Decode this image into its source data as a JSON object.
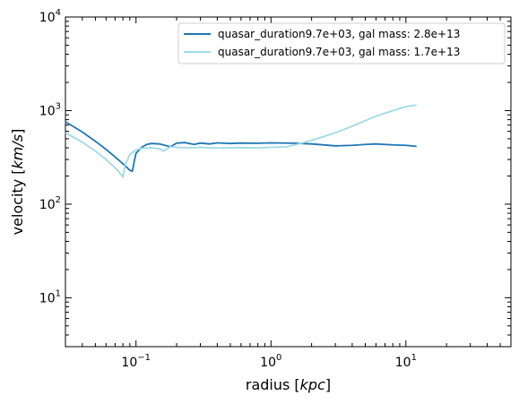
{
  "chart_data": {
    "type": "line",
    "xlabel": "radius [kpc]",
    "ylabel": "velocity [km/s]",
    "xscale": "log",
    "yscale": "log",
    "xlim": [
      0.03,
      60
    ],
    "ylim": [
      3,
      10000
    ],
    "x_ticks": [
      {
        "value": 0.1,
        "base": "10",
        "exp": "−1"
      },
      {
        "value": 1,
        "base": "10",
        "exp": "0"
      },
      {
        "value": 10,
        "base": "10",
        "exp": "1"
      }
    ],
    "y_ticks": [
      {
        "value": 10,
        "base": "10",
        "exp": "1"
      },
      {
        "value": 100,
        "base": "10",
        "exp": "2"
      },
      {
        "value": 1000,
        "base": "10",
        "exp": "3"
      },
      {
        "value": 10000,
        "base": "10",
        "exp": "4"
      }
    ],
    "grid": false,
    "legend_position": "top-right",
    "series": [
      {
        "name": "quasar_duration9.7e+03, gal mass: 2.8e+13",
        "color": "#1f77b4",
        "points": [
          [
            0.03,
            760
          ],
          [
            0.04,
            590
          ],
          [
            0.05,
            470
          ],
          [
            0.06,
            385
          ],
          [
            0.07,
            320
          ],
          [
            0.08,
            270
          ],
          [
            0.085,
            250
          ],
          [
            0.09,
            230
          ],
          [
            0.094,
            225
          ],
          [
            0.097,
            285
          ],
          [
            0.1,
            350
          ],
          [
            0.11,
            405
          ],
          [
            0.12,
            435
          ],
          [
            0.13,
            445
          ],
          [
            0.15,
            440
          ],
          [
            0.17,
            420
          ],
          [
            0.18,
            410
          ],
          [
            0.2,
            450
          ],
          [
            0.23,
            455
          ],
          [
            0.27,
            435
          ],
          [
            0.3,
            450
          ],
          [
            0.35,
            440
          ],
          [
            0.4,
            452
          ],
          [
            0.5,
            445
          ],
          [
            0.6,
            450
          ],
          [
            0.8,
            448
          ],
          [
            1.0,
            452
          ],
          [
            1.5,
            448
          ],
          [
            2.0,
            440
          ],
          [
            3.0,
            420
          ],
          [
            4.0,
            425
          ],
          [
            5.0,
            435
          ],
          [
            6.0,
            440
          ],
          [
            8.0,
            430
          ],
          [
            10.0,
            425
          ],
          [
            12.0,
            415
          ]
        ]
      },
      {
        "name": "quasar_duration9.7e+03, gal mass: 1.7e+13",
        "color": "#9edae5",
        "points": [
          [
            0.03,
            580
          ],
          [
            0.04,
            460
          ],
          [
            0.05,
            370
          ],
          [
            0.06,
            300
          ],
          [
            0.07,
            245
          ],
          [
            0.075,
            220
          ],
          [
            0.08,
            195
          ],
          [
            0.083,
            260
          ],
          [
            0.09,
            340
          ],
          [
            0.1,
            380
          ],
          [
            0.11,
            395
          ],
          [
            0.13,
            400
          ],
          [
            0.15,
            390
          ],
          [
            0.16,
            370
          ],
          [
            0.18,
            410
          ],
          [
            0.2,
            405
          ],
          [
            0.25,
            400
          ],
          [
            0.3,
            405
          ],
          [
            0.4,
            398
          ],
          [
            0.6,
            402
          ],
          [
            0.8,
            400
          ],
          [
            1.0,
            405
          ],
          [
            1.3,
            410
          ],
          [
            1.6,
            440
          ],
          [
            2.0,
            480
          ],
          [
            3.0,
            580
          ],
          [
            4.0,
            680
          ],
          [
            5.0,
            780
          ],
          [
            6.0,
            870
          ],
          [
            8.0,
            1000
          ],
          [
            10.0,
            1100
          ],
          [
            12.0,
            1150
          ]
        ]
      }
    ]
  }
}
